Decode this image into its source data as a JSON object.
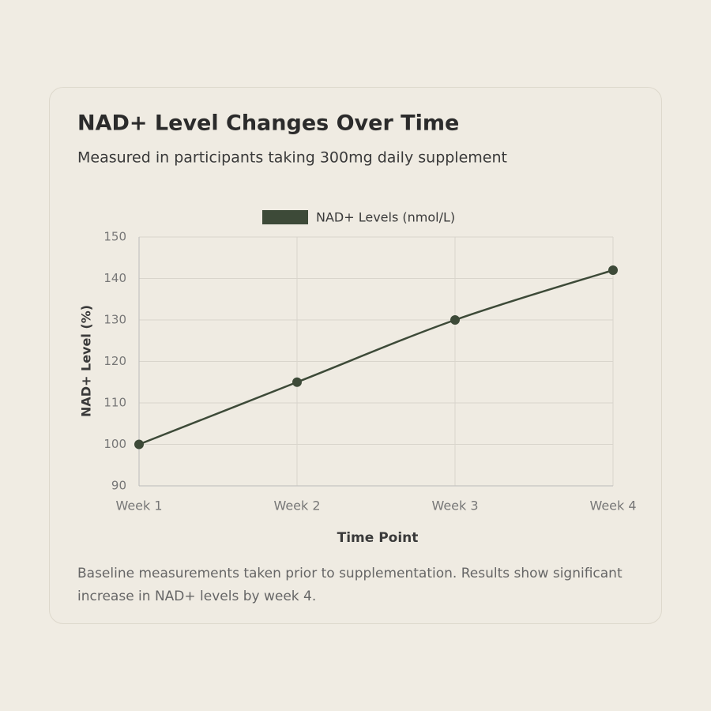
{
  "chart_data": {
    "type": "line",
    "title": "NAD+ Level Changes Over Time",
    "subtitle": "Measured in participants taking 300mg daily supplement",
    "categories": [
      "Week 1",
      "Week 2",
      "Week 3",
      "Week 4"
    ],
    "series": [
      {
        "name": "NAD+ Levels (nmol/L)",
        "color": "#3d4a38",
        "values": [
          100,
          115,
          130,
          142
        ]
      }
    ],
    "ylim": [
      90,
      150
    ],
    "yticks": [
      90,
      100,
      110,
      120,
      130,
      140,
      150
    ],
    "x_label": "Time Point",
    "y_label": "NAD+ Level (%)",
    "grid": true,
    "legend": "top",
    "note": "Baseline measurements taken prior to supplementation. Results show significant increase in NAD+ levels by week 4."
  }
}
